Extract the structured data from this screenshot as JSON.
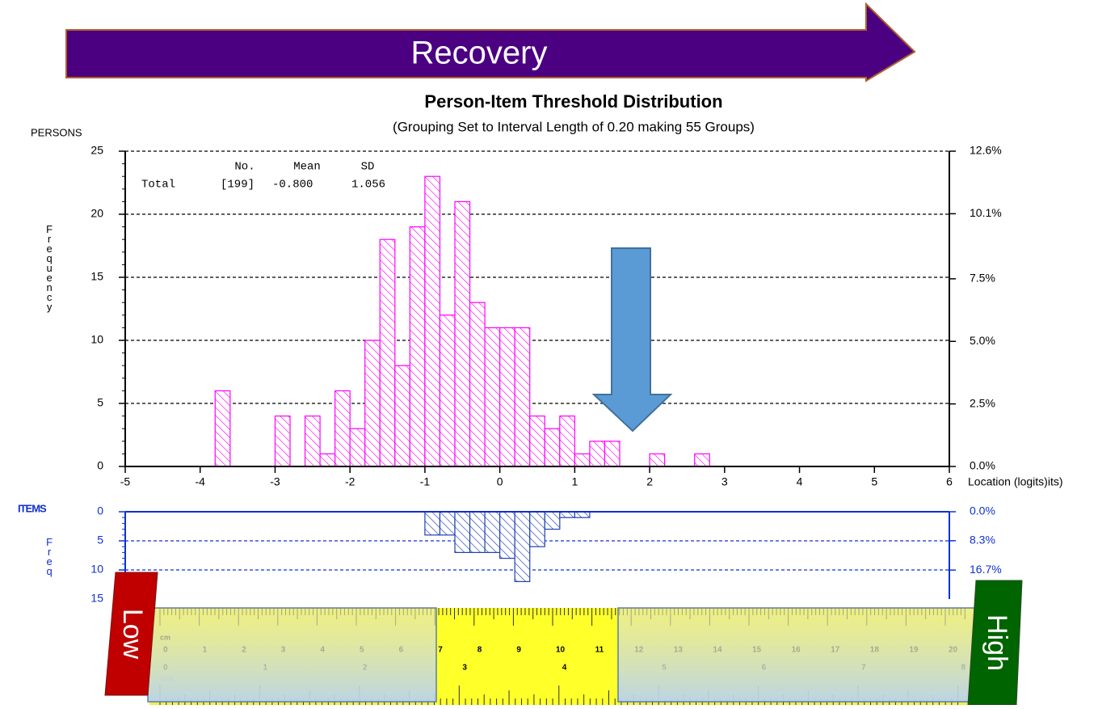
{
  "chart_data": [
    {
      "type": "histogram",
      "title": "Person-Item Threshold Distribution",
      "subtitle": "(Grouping Set to Interval Length of  0.20  making  55  Groups)",
      "group_label": "PERSONS",
      "ylabel": "Frequency",
      "xlabel": "Location (logits)its)",
      "stats": {
        "headers": [
          "No.",
          "Mean",
          "SD"
        ],
        "row_label": "Total",
        "row": [
          "[199]",
          "-0.800",
          "1.056"
        ]
      },
      "bins": [
        -5,
        -4.8,
        -4.6,
        -4.4,
        -4.2,
        -4,
        -3.8,
        -3.6,
        -3.4,
        -3.2,
        -3,
        -2.8,
        -2.6,
        -2.4,
        -2.2,
        -2,
        -1.8,
        -1.6,
        -1.4,
        -1.2,
        -1,
        -0.8,
        -0.6,
        -0.4,
        -0.2,
        0,
        0.2,
        0.4,
        0.6,
        0.8,
        1,
        1.2,
        1.4,
        1.6,
        1.8,
        2,
        2.2,
        2.4,
        2.6,
        2.8,
        3,
        3.2,
        3.4,
        3.6,
        3.8,
        4,
        4.2,
        4.4,
        4.6,
        4.8,
        5,
        5.2,
        5.4,
        5.6,
        5.8,
        6
      ],
      "values": [
        0,
        0,
        0,
        0,
        0,
        0,
        6,
        0,
        0,
        0,
        4,
        0,
        4,
        1,
        6,
        3,
        10,
        18,
        8,
        19,
        23,
        12,
        21,
        13,
        11,
        11,
        11,
        4,
        3,
        4,
        1,
        2,
        2,
        0,
        0,
        1,
        0,
        0,
        1,
        0,
        0,
        0,
        0,
        0,
        0,
        0,
        0,
        0,
        0,
        0,
        0,
        0,
        0,
        0,
        0
      ],
      "color": "#ff00ff",
      "xlim": [
        -5,
        6
      ],
      "xticks": [
        -5,
        -4,
        -3,
        -2,
        -1,
        0,
        1,
        2,
        3,
        4,
        5,
        6
      ],
      "ylim": [
        0,
        25
      ],
      "yticks": [
        0,
        5,
        10,
        15,
        20,
        25
      ],
      "y2lim": [
        0,
        12.6
      ],
      "y2ticks": [
        {
          "value": 0,
          "label": "0.0%"
        },
        {
          "value": 2.5,
          "label": "2.5%"
        },
        {
          "value": 5,
          "label": "5.0%"
        },
        {
          "value": 7.5,
          "label": "7.5%"
        },
        {
          "value": 10.1,
          "label": "10.1%"
        },
        {
          "value": 12.6,
          "label": "12.6%"
        }
      ],
      "grid": true
    },
    {
      "type": "histogram",
      "group_label": "ITEMS",
      "ylabel": "Freq",
      "bins": [
        -1,
        -0.8,
        -0.6,
        -0.4,
        -0.2,
        0,
        0.2,
        0.4,
        0.6,
        0.8,
        1,
        1.2
      ],
      "values": [
        4,
        4,
        7,
        7,
        7,
        8,
        12,
        6,
        3,
        1,
        1
      ],
      "color": "#2040b0",
      "inverted": true,
      "xlim": [
        -5,
        6
      ],
      "ylim": [
        0,
        15
      ],
      "yticks": [
        0,
        5,
        10,
        15
      ],
      "y2lim": [
        0,
        25
      ],
      "y2ticks": [
        {
          "value": 0,
          "label": "0.0%"
        },
        {
          "value": 8.3,
          "label": "8.3%"
        },
        {
          "value": 16.7,
          "label": "16.7%"
        }
      ],
      "grid": true
    }
  ],
  "banner": {
    "text": "Recovery"
  },
  "scale": {
    "low": "Low",
    "high": "High",
    "ruler": {
      "cm_unit": "cm",
      "cm": [
        0,
        1,
        2,
        3,
        4,
        5,
        6,
        7,
        8,
        9,
        10,
        11,
        12,
        13,
        14,
        15,
        16,
        17,
        18,
        19,
        20
      ],
      "inch_unit": "inch",
      "inch": [
        0,
        1,
        2,
        3,
        4,
        5,
        6,
        7,
        8
      ]
    }
  }
}
